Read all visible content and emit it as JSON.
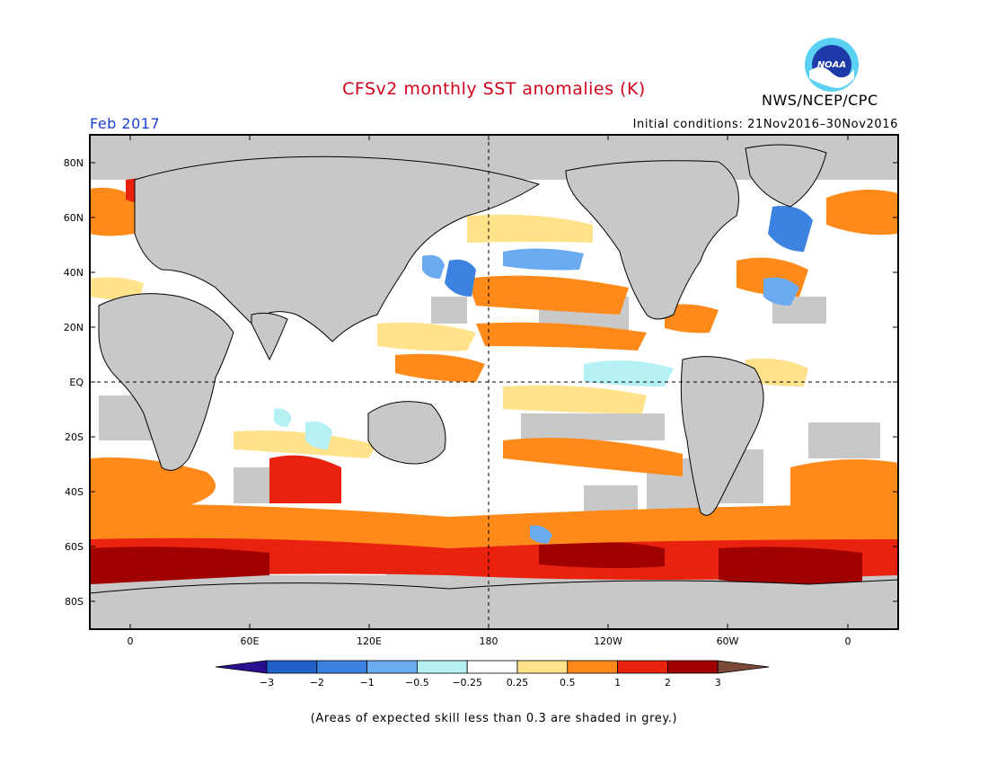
{
  "title": "CFSv2 monthly SST anomalies (K)",
  "agency": "NWS/NCEP/CPC",
  "logo_text": "NOAA",
  "month": "Feb 2017",
  "initial_conditions": "Initial conditions: 21Nov2016–30Nov2016",
  "footnote": "(Areas of expected skill less than 0.3 are shaded in grey.)",
  "lat_labels": [
    "80N",
    "60N",
    "40N",
    "20N",
    "EQ",
    "20S",
    "40S",
    "60S",
    "80S"
  ],
  "lon_labels": [
    "0",
    "60E",
    "120E",
    "180",
    "120W",
    "60W",
    "0"
  ],
  "colorbar": {
    "labels": [
      "−3",
      "−2",
      "−1",
      "−0.5",
      "−0.25",
      "0.25",
      "0.5",
      "1",
      "2",
      "3"
    ],
    "colors": [
      "#2a0f8f",
      "#1f5fc8",
      "#3c82e0",
      "#69aaf0",
      "#b5f0f5",
      "#ffffff",
      "#ffe28a",
      "#ff8a1a",
      "#e8220e",
      "#a00000",
      "#7b4a37"
    ]
  },
  "colors": {
    "land": "#c8c8c8",
    "no_skill": "#c8c8c8",
    "neutral": "#ffffff"
  }
}
